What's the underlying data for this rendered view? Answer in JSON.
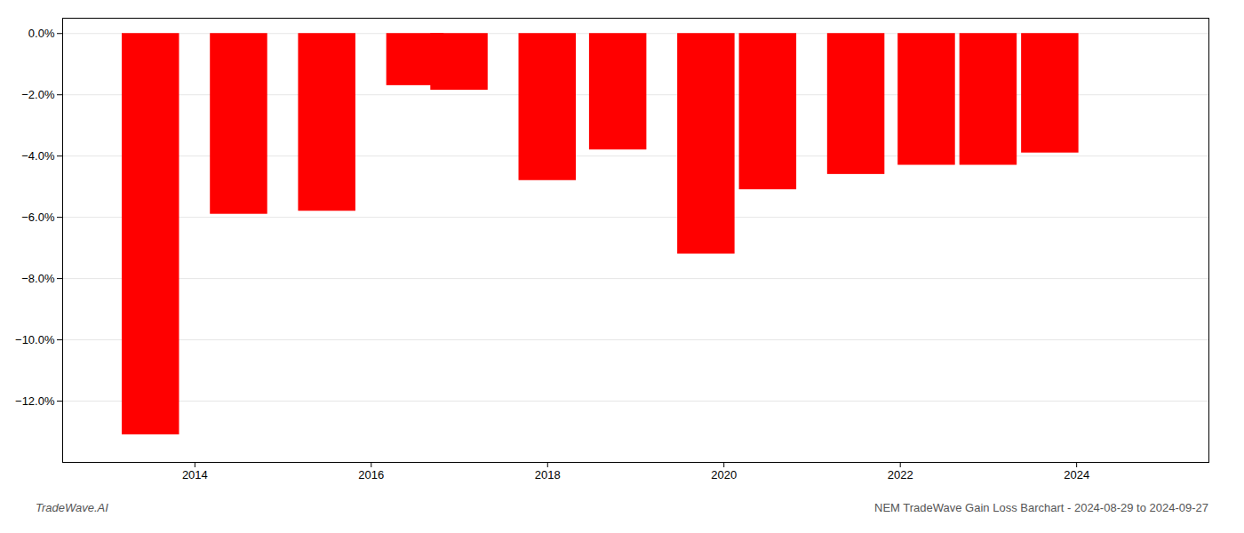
{
  "chart_data": {
    "type": "bar",
    "title": "NEM TradeWave Gain Loss Barchart - 2024-08-29 to 2024-09-27",
    "annotations": [
      "TradeWave.AI"
    ],
    "x": [
      2013.5,
      2014.5,
      2015.5,
      2016.5,
      2017.0,
      2018.0,
      2018.8,
      2019.8,
      2020.5,
      2021.5,
      2022.3,
      2023.0,
      2023.7
    ],
    "values": [
      -13.1,
      -5.9,
      -5.8,
      -1.7,
      -1.85,
      -4.8,
      -3.8,
      -7.2,
      -5.1,
      -4.6,
      -4.3,
      -4.3,
      -3.9
    ],
    "color": "#ff0000",
    "xlim": [
      2012.5,
      2025.5
    ],
    "xticks": [
      2014,
      2016,
      2018,
      2020,
      2022,
      2024
    ],
    "ylim": [
      -14.0,
      0.5
    ],
    "yticks": [
      {
        "value": 0.0,
        "label": "0.0%"
      },
      {
        "value": -2.0,
        "label": "−2.0%"
      },
      {
        "value": -4.0,
        "label": "−4.0%"
      },
      {
        "value": -6.0,
        "label": "−6.0%"
      },
      {
        "value": -8.0,
        "label": "−8.0%"
      },
      {
        "value": -10.0,
        "label": "−10.0%"
      },
      {
        "value": -12.0,
        "label": "−12.0%"
      }
    ],
    "grid": true
  }
}
